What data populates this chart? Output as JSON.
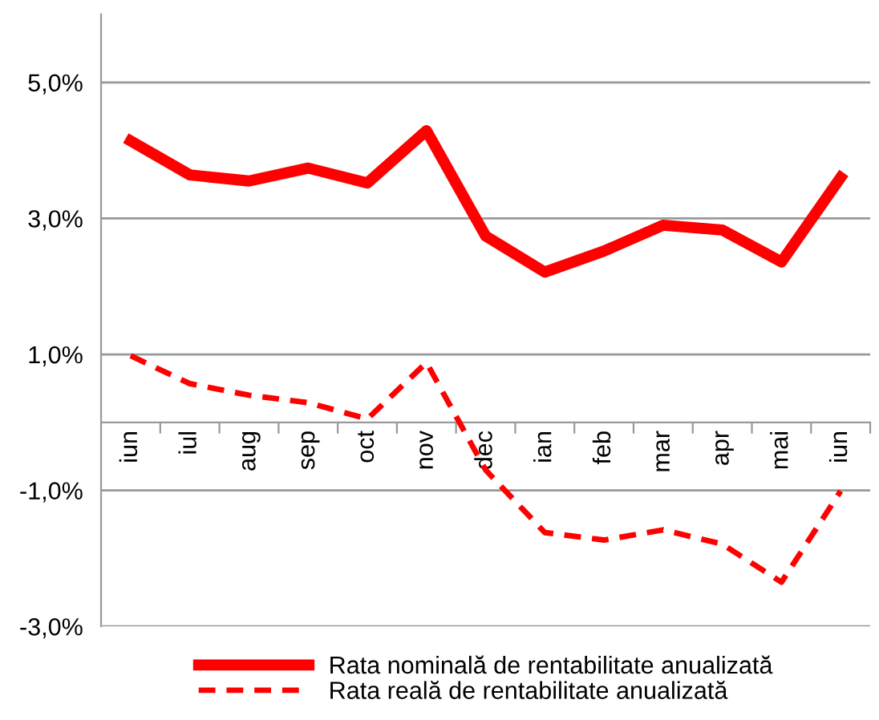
{
  "chart_data": {
    "type": "line",
    "categories": [
      "iun",
      "iul",
      "aug",
      "sep",
      "oct",
      "nov",
      "dec",
      "ian",
      "feb",
      "mar",
      "apr",
      "mai",
      "iun"
    ],
    "series": [
      {
        "name": "Rata nominală de rentabilitate anualizată",
        "color": "#ff0000",
        "line_style": "solid",
        "values": [
          4.14,
          3.64,
          3.55,
          3.74,
          3.52,
          4.29,
          2.74,
          2.21,
          2.52,
          2.9,
          2.83,
          2.36,
          3.6
        ]
      },
      {
        "name": "Rata reală de rentabilitate anualizată",
        "color": "#ff0000",
        "line_style": "dashed",
        "values": [
          0.98,
          0.57,
          0.4,
          0.29,
          0.05,
          0.88,
          -0.7,
          -1.62,
          -1.73,
          -1.58,
          -1.79,
          -2.35,
          -1.01
        ]
      }
    ],
    "ylim": [
      -3,
      6
    ],
    "yticks": [
      {
        "value": -3,
        "label": "-3,0%"
      },
      {
        "value": -1,
        "label": "-1,0%"
      },
      {
        "value": 1,
        "label": "1,0%"
      },
      {
        "value": 3,
        "label": "3,0%"
      },
      {
        "value": 5,
        "label": "5,0%"
      }
    ],
    "grid": "y",
    "legend": "bottom",
    "marker": "none"
  }
}
